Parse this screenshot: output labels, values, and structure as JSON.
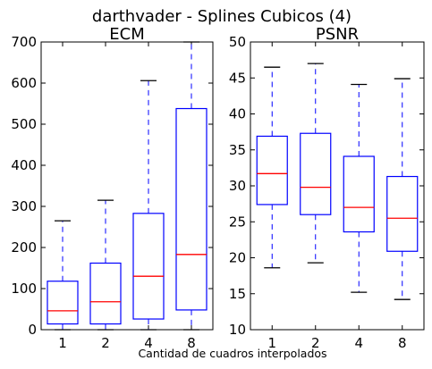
{
  "chart_data": {
    "suptitle": "darthvader - Splines Cubicos (4)",
    "xlabel": "Cantidad de cuadros interpolados",
    "type": "box",
    "colors": {
      "box": "#0000ff",
      "median": "#ff0000",
      "cap": "#000000"
    },
    "panels": [
      {
        "title": "ECM",
        "ylim": [
          0,
          700
        ],
        "yticks": [
          0,
          100,
          200,
          300,
          400,
          500,
          600,
          700
        ],
        "categories": [
          "1",
          "2",
          "4",
          "8"
        ],
        "boxes": [
          {
            "whislo": 0,
            "q1": 14,
            "med": 46,
            "q3": 118,
            "whishi": 265
          },
          {
            "whislo": 0,
            "q1": 14,
            "med": 68,
            "q3": 162,
            "whishi": 315
          },
          {
            "whislo": 0,
            "q1": 26,
            "med": 130,
            "q3": 283,
            "whishi": 606
          },
          {
            "whislo": 0,
            "q1": 48,
            "med": 183,
            "q3": 538,
            "whishi": 700
          }
        ]
      },
      {
        "title": "PSNR",
        "ylim": [
          10,
          50
        ],
        "yticks": [
          10,
          15,
          20,
          25,
          30,
          35,
          40,
          45,
          50
        ],
        "categories": [
          "1",
          "2",
          "4",
          "8"
        ],
        "boxes": [
          {
            "whislo": 18.6,
            "q1": 27.4,
            "med": 31.7,
            "q3": 36.9,
            "whishi": 46.5
          },
          {
            "whislo": 19.3,
            "q1": 26.0,
            "med": 29.8,
            "q3": 37.3,
            "whishi": 47.0
          },
          {
            "whislo": 15.2,
            "q1": 23.6,
            "med": 27.0,
            "q3": 34.1,
            "whishi": 44.1
          },
          {
            "whislo": 14.2,
            "q1": 20.9,
            "med": 25.5,
            "q3": 31.3,
            "whishi": 44.9
          }
        ]
      }
    ]
  }
}
